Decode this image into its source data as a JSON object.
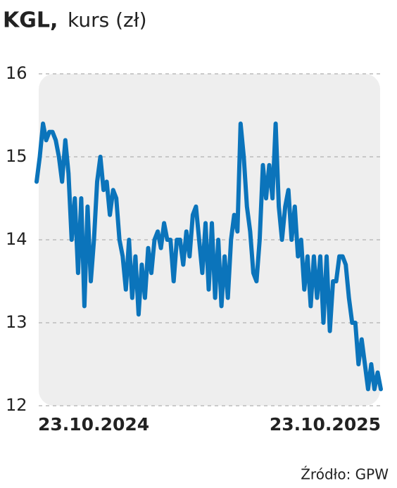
{
  "chart_data": {
    "type": "line",
    "ticker": "KGL,",
    "title": "kurs (zł)",
    "source": "Źródło: GPW",
    "categories": [
      "23.10.2024",
      null,
      null,
      null,
      null,
      null,
      null,
      null,
      null,
      null,
      null,
      null,
      null,
      null,
      null,
      null,
      null,
      null,
      null,
      null,
      null,
      null,
      null,
      null,
      null,
      null,
      null,
      null,
      null,
      null,
      null,
      null,
      null,
      null,
      null,
      null,
      null,
      null,
      null,
      null,
      null,
      null,
      null,
      null,
      null,
      null,
      null,
      null,
      null,
      null,
      null,
      null,
      null,
      null,
      null,
      null,
      null,
      null,
      null,
      null,
      null,
      null,
      null,
      null,
      null,
      null,
      null,
      null,
      null,
      null,
      null,
      null,
      null,
      null,
      null,
      null,
      null,
      null,
      null,
      null,
      null,
      null,
      null,
      null,
      null,
      null,
      null,
      null,
      null,
      null,
      null,
      null,
      null,
      null,
      null,
      null,
      null,
      null,
      null,
      null,
      null,
      null,
      null,
      null,
      null,
      null,
      null,
      null,
      "23.10.2025"
    ],
    "values": [
      14.7,
      15.0,
      15.4,
      15.2,
      15.3,
      15.3,
      15.2,
      15.0,
      14.7,
      15.2,
      14.8,
      14.0,
      14.5,
      13.6,
      14.5,
      13.2,
      14.4,
      13.5,
      14.0,
      14.7,
      15.0,
      14.6,
      14.7,
      14.3,
      14.6,
      14.5,
      14.0,
      13.8,
      13.4,
      14.0,
      13.3,
      13.8,
      13.1,
      13.7,
      13.3,
      13.9,
      13.6,
      14.0,
      14.1,
      13.9,
      14.2,
      14.0,
      14.0,
      13.5,
      14.0,
      14.0,
      13.7,
      14.1,
      13.8,
      14.3,
      14.4,
      14.0,
      13.6,
      14.2,
      13.4,
      14.2,
      13.3,
      14.0,
      13.2,
      13.8,
      13.3,
      14.0,
      14.3,
      14.1,
      15.4,
      15.0,
      14.4,
      14.1,
      13.6,
      13.5,
      14.0,
      14.9,
      14.5,
      14.9,
      14.5,
      15.4,
      14.4,
      14.0,
      14.4,
      14.6,
      14.0,
      14.4,
      13.8,
      14.0,
      13.4,
      13.8,
      13.2,
      13.8,
      13.3,
      13.8,
      13.0,
      13.8,
      12.9,
      13.5,
      13.5,
      13.8,
      13.8,
      13.7,
      13.3,
      13.0,
      13.0,
      12.5,
      12.8,
      12.5,
      12.2,
      12.5,
      12.2,
      12.4,
      12.2
    ],
    "color": "#0b74bb",
    "ylim": [
      12,
      16
    ],
    "yticks": [
      12,
      13,
      14,
      15,
      16
    ],
    "grid": true
  }
}
